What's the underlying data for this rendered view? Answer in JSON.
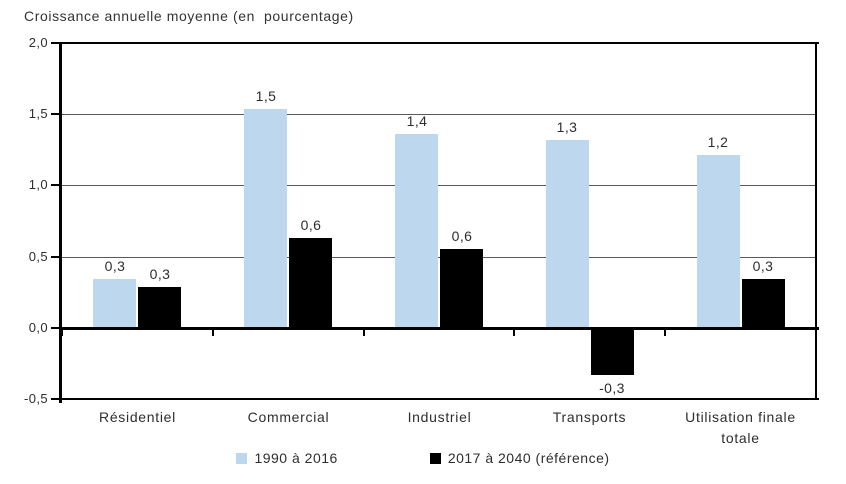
{
  "title": "Croissance annuelle moyenne (en  pourcentage)",
  "colors": {
    "series1": "#BDD7EE",
    "series2": "#000000",
    "gridline": "#595959",
    "axis": "#000000",
    "text": "#2e2e2e",
    "background": "#FFFFFF"
  },
  "y_axis": {
    "tick_labels": [
      "2,0",
      "1,5",
      "1,0",
      "0,5",
      "0,0",
      "-0,5"
    ],
    "tick_values": [
      2.0,
      1.5,
      1.0,
      0.5,
      0.0,
      -0.5
    ]
  },
  "legend": {
    "items": [
      {
        "label": "1990 à 2016",
        "color": "#BDD7EE"
      },
      {
        "label": "2017 à 2040 (référence)",
        "color": "#000000"
      }
    ]
  },
  "chart_data": {
    "type": "bar",
    "title": "Croissance annuelle moyenne (en pourcentage)",
    "categories": [
      "Résidentiel",
      "Commercial",
      "Industriel",
      "Transports",
      "Utilisation finale totale"
    ],
    "series": [
      {
        "name": "1990 à 2016",
        "color": "#BDD7EE",
        "values": [
          0.3,
          1.5,
          1.4,
          1.3,
          1.2
        ],
        "value_labels": [
          "0,3",
          "1,5",
          "1,4",
          "1,3",
          "1,2"
        ],
        "plot_values": [
          0.34,
          1.54,
          1.36,
          1.32,
          1.21
        ]
      },
      {
        "name": "2017 à 2040 (référence)",
        "color": "#000000",
        "values": [
          0.3,
          0.6,
          0.6,
          -0.3,
          0.3
        ],
        "value_labels": [
          "0,3",
          "0,6",
          "0,6",
          "-0,3",
          "0,3"
        ],
        "plot_values": [
          0.29,
          0.63,
          0.55,
          -0.33,
          0.34
        ]
      }
    ],
    "ylim": [
      -0.5,
      2.0
    ],
    "y_tick_step": 0.5,
    "grid": true,
    "legend_position": "bottom"
  }
}
